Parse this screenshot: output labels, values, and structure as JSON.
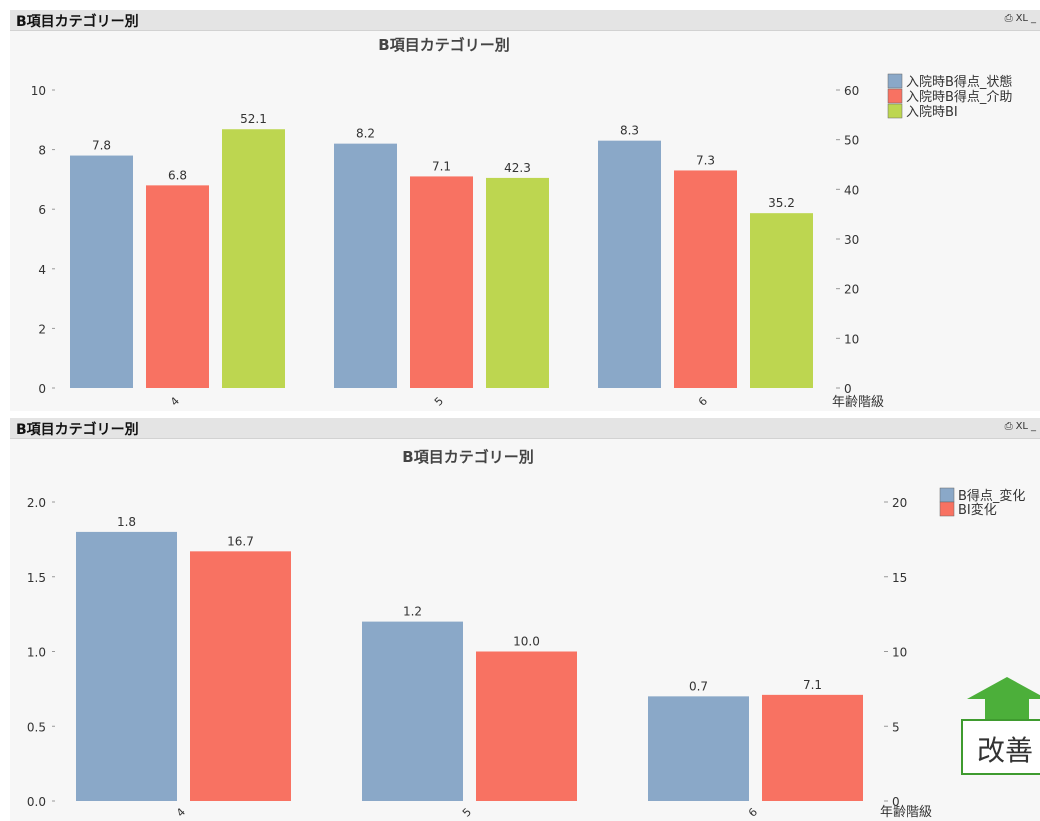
{
  "panels": [
    {
      "caption": "B項目カテゴリー別",
      "icons": {
        "print": "印刷アイコン",
        "xl": "XL",
        "minimize": "_"
      },
      "chart_data": {
        "type": "bar",
        "title": "B項目カテゴリー別",
        "categories": [
          "4",
          "5",
          "6"
        ],
        "xlabel": "年齢階級",
        "series": [
          {
            "name": "入院時B得点_状態",
            "axis": "left",
            "color": "#8aa8c8",
            "values": [
              7.8,
              8.2,
              8.3
            ],
            "labels": [
              "7.8",
              "8.2",
              "8.3"
            ]
          },
          {
            "name": "入院時B得点_介助",
            "axis": "left",
            "color": "#f87262",
            "values": [
              6.8,
              7.1,
              7.3
            ],
            "labels": [
              "6.8",
              "7.1",
              "7.3"
            ]
          },
          {
            "name": "入院時BI",
            "axis": "right",
            "color": "#bdd650",
            "values": [
              52.1,
              42.3,
              35.2
            ],
            "labels": [
              "52.1",
              "42.3",
              "35.2"
            ]
          }
        ],
        "y_left": {
          "ylim": [
            0,
            10
          ],
          "ticks": [
            "0",
            "2",
            "4",
            "6",
            "8",
            "10"
          ]
        },
        "y_right": {
          "ylim": [
            0,
            60
          ],
          "ticks": [
            "0",
            "10",
            "20",
            "30",
            "40",
            "50",
            "60"
          ]
        },
        "legend": "top-right",
        "grid": false
      }
    },
    {
      "caption": "B項目カテゴリー別",
      "icons": {
        "print": "印刷アイコン",
        "xl": "XL",
        "minimize": "_"
      },
      "chart_data": {
        "type": "bar",
        "title": "B項目カテゴリー別",
        "categories": [
          "4",
          "5",
          "6"
        ],
        "xlabel": "年齢階級",
        "series": [
          {
            "name": "B得点_変化",
            "axis": "left",
            "color": "#8aa8c8",
            "values": [
              1.8,
              1.2,
              0.7
            ],
            "labels": [
              "1.8",
              "1.2",
              "0.7"
            ]
          },
          {
            "name": "BI変化",
            "axis": "right",
            "color": "#f87262",
            "values": [
              16.7,
              10.0,
              7.1
            ],
            "labels": [
              "16.7",
              "10.0",
              "7.1"
            ]
          }
        ],
        "y_left": {
          "ylim": [
            0,
            2
          ],
          "ticks": [
            "0.0",
            "0.5",
            "1.0",
            "1.5",
            "2.0"
          ]
        },
        "y_right": {
          "ylim": [
            0,
            20
          ],
          "ticks": [
            "0",
            "5",
            "10",
            "15",
            "20"
          ]
        },
        "legend": "top-right",
        "grid": false
      }
    }
  ],
  "annotation": {
    "label": "改善",
    "icon": "up-arrow-icon",
    "color": "#4caf3a"
  }
}
